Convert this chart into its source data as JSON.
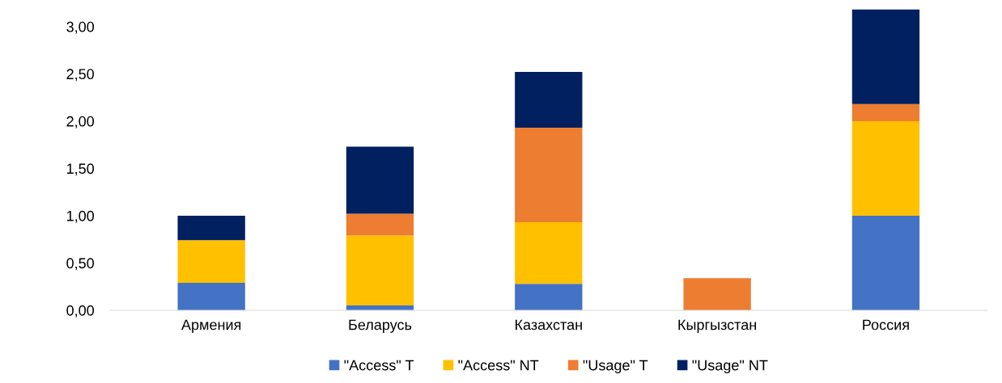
{
  "chart_data": {
    "type": "bar",
    "stacked": true,
    "categories": [
      "Армения",
      "Беларусь",
      "Казахстан",
      "Кыргызстан",
      "Россия"
    ],
    "series": [
      {
        "name": "\"Access\" T",
        "color": "#4472c4",
        "values": [
          0.29,
          0.05,
          0.28,
          0,
          1.0
        ]
      },
      {
        "name": "\"Access\" NT",
        "color": "#ffc000",
        "values": [
          0.45,
          0.74,
          0.65,
          0,
          1.0
        ]
      },
      {
        "name": "\"Usage\" T",
        "color": "#ed7d31",
        "values": [
          0,
          0.23,
          1.0,
          0.34,
          0.18
        ]
      },
      {
        "name": "\"Usage\" NT",
        "color": "#002060",
        "values": [
          0.26,
          0.71,
          0.59,
          0,
          1.0
        ]
      }
    ],
    "ylim": [
      0,
      3.2
    ],
    "yticks": [
      {
        "value": 0,
        "label": "0,00"
      },
      {
        "value": 0.5,
        "label": "0,50"
      },
      {
        "value": 1,
        "label": "1,00"
      },
      {
        "value": 1.5,
        "label": "1,50"
      },
      {
        "value": 2,
        "label": "2,00"
      },
      {
        "value": 2.5,
        "label": "2,50"
      },
      {
        "value": 3,
        "label": "3,00"
      }
    ],
    "grid": false,
    "legend": "bottom"
  }
}
